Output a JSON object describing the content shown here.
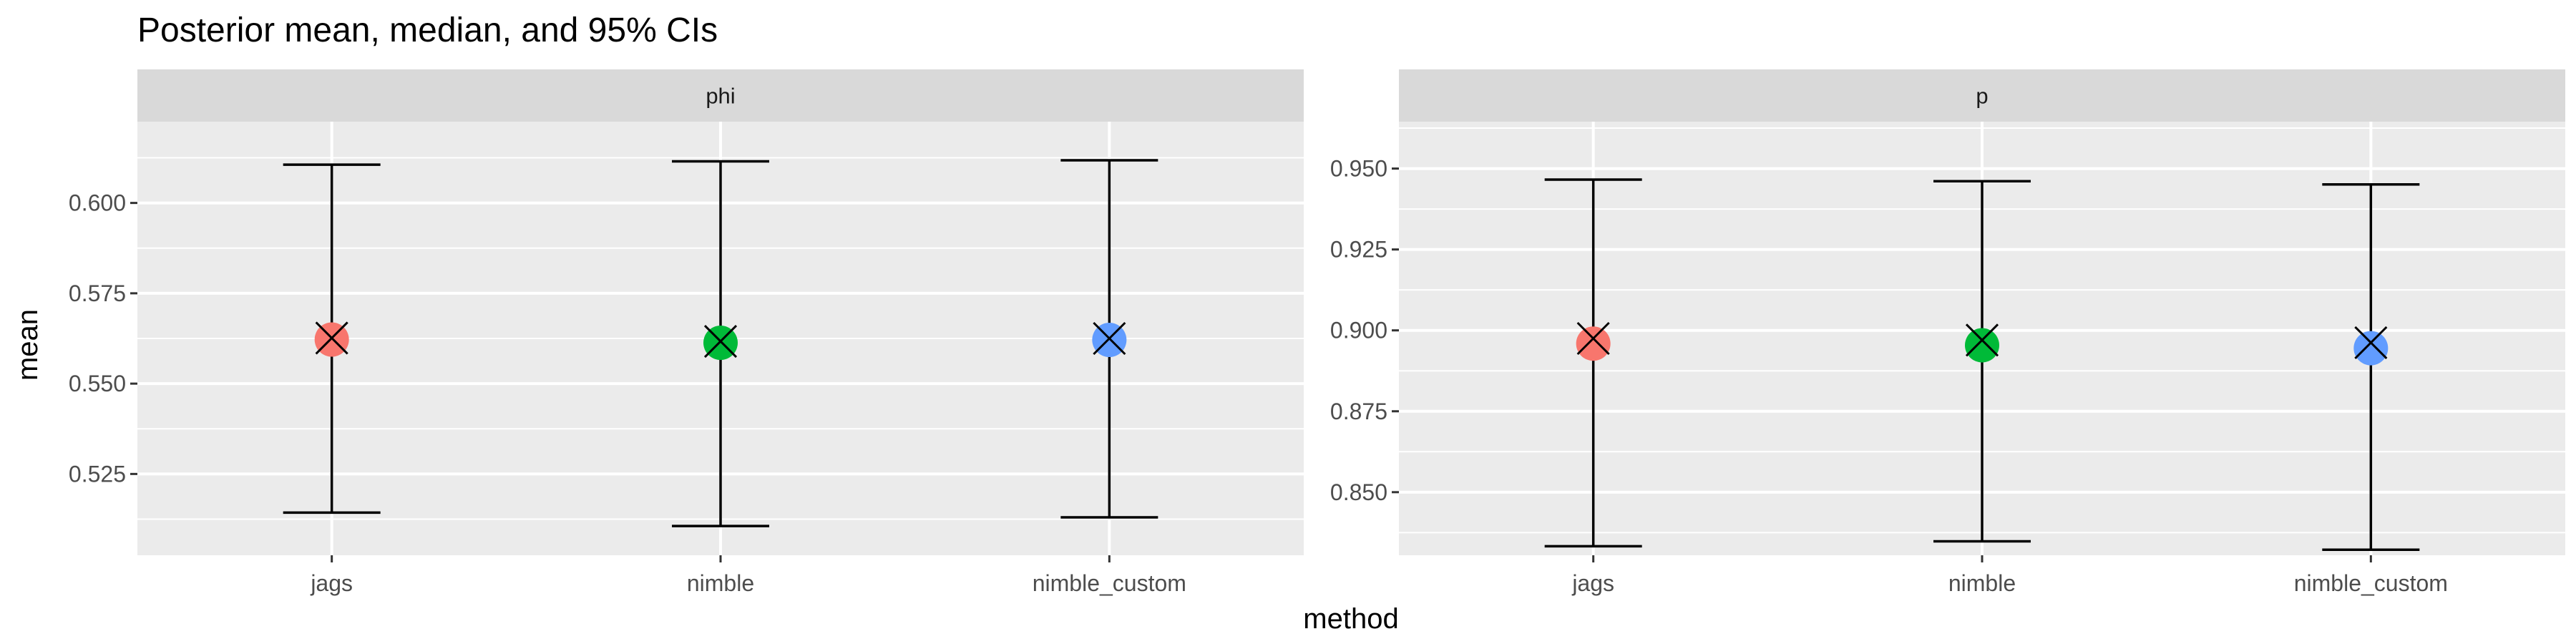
{
  "chart_data": {
    "type": "scatter",
    "title": "Posterior mean, median, and 95% CIs",
    "xlabel": "method",
    "ylabel": "mean",
    "categories": [
      "jags",
      "nimble",
      "nimble_custom"
    ],
    "colors": {
      "jags": "#F8766D",
      "nimble": "#00BA38",
      "nimble_custom": "#619CFF"
    },
    "mean_marker": "filled-circle",
    "median_marker": "x-cross",
    "grid": true,
    "legend": "none",
    "panels": [
      {
        "strip": "phi",
        "ylim": [
          0.5025,
          0.6225
        ],
        "yticks": [
          0.525,
          0.55,
          0.575,
          0.6
        ],
        "ytick_labels": [
          "0.525",
          "0.550",
          "0.575",
          "0.600"
        ],
        "points": [
          {
            "method": "jags",
            "mean": 0.5622,
            "median": 0.5626,
            "lower": 0.5143,
            "upper": 0.6106
          },
          {
            "method": "nimble",
            "mean": 0.5613,
            "median": 0.5617,
            "lower": 0.5106,
            "upper": 0.6115
          },
          {
            "method": "nimble_custom",
            "mean": 0.5621,
            "median": 0.5625,
            "lower": 0.513,
            "upper": 0.6118
          }
        ]
      },
      {
        "strip": "p",
        "ylim": [
          0.8305,
          0.9645
        ],
        "yticks": [
          0.85,
          0.875,
          0.9,
          0.925,
          0.95
        ],
        "ytick_labels": [
          "0.850",
          "0.875",
          "0.900",
          "0.925",
          "0.950"
        ],
        "points": [
          {
            "method": "jags",
            "mean": 0.8959,
            "median": 0.8975,
            "lower": 0.8333,
            "upper": 0.9466
          },
          {
            "method": "nimble",
            "mean": 0.8954,
            "median": 0.897,
            "lower": 0.8348,
            "upper": 0.9461
          },
          {
            "method": "nimble_custom",
            "mean": 0.8945,
            "median": 0.8962,
            "lower": 0.8322,
            "upper": 0.9451
          }
        ]
      }
    ]
  }
}
